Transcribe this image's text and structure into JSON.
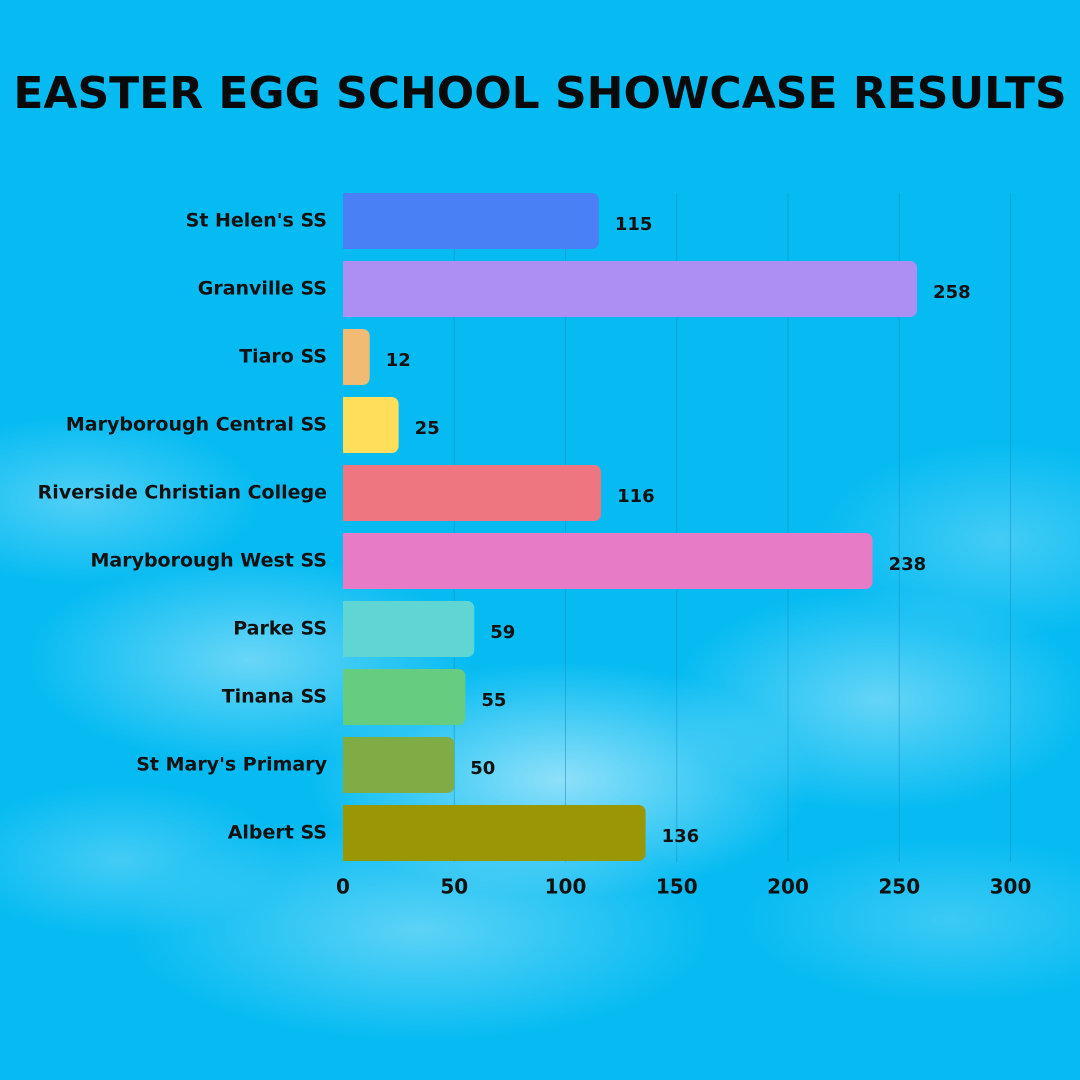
{
  "chart_data": {
    "type": "bar",
    "orientation": "horizontal",
    "title": "EASTER EGG SCHOOL SHOWCASE RESULTS",
    "xlabel": "",
    "ylabel": "",
    "categories": [
      "St Helen's SS",
      "Granville SS",
      "Tiaro SS",
      "Maryborough Central SS",
      "Riverside Christian College",
      "Maryborough West SS",
      "Parke SS",
      "Tinana SS",
      "St Mary's Primary",
      "Albert SS"
    ],
    "values": [
      115,
      258,
      12,
      25,
      116,
      238,
      59,
      55,
      50,
      136
    ],
    "colors": [
      "#4a80f5",
      "#ad8ef2",
      "#f2bb73",
      "#ffde5c",
      "#ee7680",
      "#e87bc5",
      "#5fd6d3",
      "#66cc80",
      "#80ac45",
      "#999705"
    ],
    "xlim": [
      0,
      300
    ],
    "xticks": [
      0,
      50,
      100,
      150,
      200,
      250,
      300
    ],
    "grid": true,
    "legend": "none"
  }
}
